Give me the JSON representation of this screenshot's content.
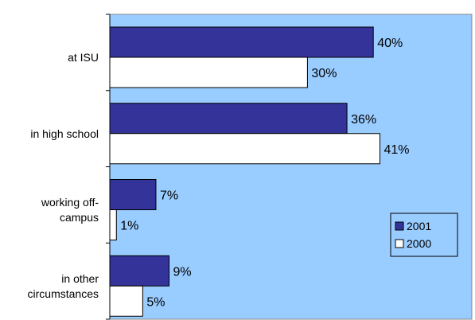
{
  "chart_data": {
    "type": "bar",
    "orientation": "horizontal",
    "categories": [
      [
        "at ISU"
      ],
      [
        "in high school"
      ],
      [
        "working off-",
        "campus"
      ],
      [
        "in other",
        "circumstances"
      ]
    ],
    "series": [
      {
        "name": "2001",
        "values": [
          40,
          36,
          7,
          9
        ],
        "labels": [
          "40%",
          "36%",
          "7%",
          "9%"
        ],
        "color": "#333399"
      },
      {
        "name": "2000",
        "values": [
          30,
          41,
          1,
          5
        ],
        "labels": [
          "30%",
          "41%",
          "1%",
          "5%"
        ],
        "color": "#ffffff"
      }
    ],
    "xlim": [
      0,
      55
    ],
    "plot_background": "#99ccff",
    "grid": false,
    "legend_position": "right",
    "title": "",
    "xlabel": "",
    "ylabel": ""
  }
}
